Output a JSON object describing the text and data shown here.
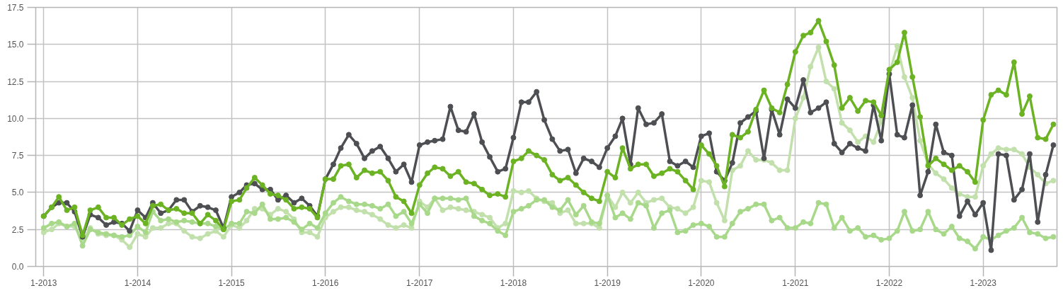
{
  "chart_data": {
    "type": "line",
    "marker": "circle",
    "line_style": "solid",
    "grid": true,
    "xlim": [
      "2012-12-01",
      "2023-10-15"
    ],
    "ylim": [
      0,
      17.5
    ],
    "xticks": [
      {
        "value": "2013-01",
        "label": "1-2013"
      },
      {
        "value": "2014-01",
        "label": "1-2014"
      },
      {
        "value": "2015-01",
        "label": "1-2015"
      },
      {
        "value": "2016-01",
        "label": "1-2016"
      },
      {
        "value": "2017-01",
        "label": "1-2017"
      },
      {
        "value": "2018-01",
        "label": "1-2018"
      },
      {
        "value": "2019-01",
        "label": "1-2019"
      },
      {
        "value": "2020-01",
        "label": "1-2020"
      },
      {
        "value": "2021-01",
        "label": "1-2021"
      },
      {
        "value": "2022-01",
        "label": "1-2022"
      },
      {
        "value": "2023-01",
        "label": "1-2023"
      }
    ],
    "yticks": [
      {
        "value": 0,
        "label": "0.0"
      },
      {
        "value": 2.5,
        "label": "2.5"
      },
      {
        "value": 5,
        "label": "5.0"
      },
      {
        "value": 7.5,
        "label": "7.5"
      },
      {
        "value": 10,
        "label": "10.0"
      },
      {
        "value": 12.5,
        "label": "12.5"
      },
      {
        "value": 15,
        "label": "15.0"
      },
      {
        "value": 17.5,
        "label": "17.5"
      }
    ],
    "x": [
      "2013-01",
      "2013-02",
      "2013-03",
      "2013-04",
      "2013-05",
      "2013-06",
      "2013-07",
      "2013-08",
      "2013-09",
      "2013-10",
      "2013-11",
      "2013-12",
      "2014-01",
      "2014-02",
      "2014-03",
      "2014-04",
      "2014-05",
      "2014-06",
      "2014-07",
      "2014-08",
      "2014-09",
      "2014-10",
      "2014-11",
      "2014-12",
      "2015-01",
      "2015-02",
      "2015-03",
      "2015-04",
      "2015-05",
      "2015-06",
      "2015-07",
      "2015-08",
      "2015-09",
      "2015-10",
      "2015-11",
      "2015-12",
      "2016-01",
      "2016-02",
      "2016-03",
      "2016-04",
      "2016-05",
      "2016-06",
      "2016-07",
      "2016-08",
      "2016-09",
      "2016-10",
      "2016-11",
      "2016-12",
      "2017-01",
      "2017-02",
      "2017-03",
      "2017-04",
      "2017-05",
      "2017-06",
      "2017-07",
      "2017-08",
      "2017-09",
      "2017-10",
      "2017-11",
      "2017-12",
      "2018-01",
      "2018-02",
      "2018-03",
      "2018-04",
      "2018-05",
      "2018-06",
      "2018-07",
      "2018-08",
      "2018-09",
      "2018-10",
      "2018-11",
      "2018-12",
      "2019-01",
      "2019-02",
      "2019-03",
      "2019-04",
      "2019-05",
      "2019-06",
      "2019-07",
      "2019-08",
      "2019-09",
      "2019-10",
      "2019-11",
      "2019-12",
      "2020-01",
      "2020-02",
      "2020-03",
      "2020-04",
      "2020-05",
      "2020-06",
      "2020-07",
      "2020-08",
      "2020-09",
      "2020-10",
      "2020-11",
      "2020-12",
      "2021-01",
      "2021-02",
      "2021-03",
      "2021-04",
      "2021-05",
      "2021-06",
      "2021-07",
      "2021-08",
      "2021-09",
      "2021-10",
      "2021-11",
      "2021-12",
      "2022-01",
      "2022-02",
      "2022-03",
      "2022-04",
      "2022-05",
      "2022-06",
      "2022-07",
      "2022-08",
      "2022-09",
      "2022-10",
      "2022-11",
      "2022-12",
      "2023-01",
      "2023-02",
      "2023-03",
      "2023-04",
      "2023-05",
      "2023-06",
      "2023-07",
      "2023-08",
      "2023-09",
      "2023-10"
    ],
    "series": [
      {
        "color": "#c2e0ab",
        "values": [
          2.3,
          2.5,
          2.9,
          2.7,
          2.7,
          1.8,
          2.6,
          2.2,
          2.1,
          2.1,
          1.8,
          1.3,
          2.2,
          2.0,
          2.6,
          2.6,
          2.9,
          2.9,
          2.4,
          2.0,
          1.9,
          2.2,
          2.4,
          2.0,
          2.8,
          2.6,
          3.1,
          3.9,
          3.9,
          3.5,
          3.9,
          3.7,
          3.2,
          2.3,
          2.3,
          2.0,
          3.3,
          3.7,
          4.0,
          4.0,
          3.8,
          3.7,
          3.5,
          3.2,
          2.8,
          2.6,
          2.8,
          2.6,
          4.4,
          4.0,
          4.6,
          3.8,
          4.0,
          3.9,
          3.8,
          3.7,
          3.5,
          3.3,
          2.6,
          2.9,
          5.1,
          5.0,
          5.1,
          4.6,
          4.4,
          4.3,
          3.6,
          3.8,
          2.9,
          2.9,
          2.9,
          2.6,
          4.8,
          4.0,
          5.0,
          4.3,
          5.0,
          4.3,
          4.5,
          4.6,
          4.0,
          3.9,
          3.6,
          4.0,
          5.8,
          5.7,
          4.3,
          3.1,
          6.5,
          6.8,
          7.8,
          7.2,
          7.2,
          7.0,
          6.5,
          6.5,
          10.0,
          11.4,
          13.5,
          14.8,
          12.5,
          12.0,
          9.7,
          9.2,
          8.4,
          8.8,
          8.4,
          9.8,
          13.0,
          14.9,
          12.8,
          11.4,
          8.5,
          6.9,
          6.3,
          5.9,
          5.3,
          4.9,
          4.7,
          4.7,
          6.8,
          7.6,
          8.0,
          7.9,
          7.9,
          7.6,
          6.7,
          6.2,
          5.6,
          5.8
        ]
      },
      {
        "color": "#a8d98a",
        "values": [
          2.6,
          2.9,
          3.0,
          2.7,
          2.9,
          1.4,
          2.5,
          2.3,
          2.2,
          2.1,
          2.0,
          2.1,
          2.7,
          2.3,
          3.7,
          3.1,
          3.2,
          3.0,
          3.1,
          3.0,
          2.9,
          2.9,
          2.7,
          2.5,
          2.9,
          2.9,
          3.7,
          3.6,
          4.2,
          3.2,
          3.2,
          3.3,
          3.0,
          2.5,
          2.9,
          2.6,
          3.6,
          4.3,
          4.7,
          4.4,
          4.2,
          4.2,
          4.1,
          3.9,
          4.2,
          3.4,
          3.7,
          2.9,
          4.2,
          3.6,
          4.6,
          4.6,
          4.6,
          4.5,
          4.6,
          3.4,
          3.1,
          2.9,
          2.4,
          2.1,
          3.7,
          3.9,
          4.1,
          4.5,
          4.5,
          4.0,
          3.8,
          4.5,
          3.5,
          4.1,
          3.0,
          2.9,
          4.8,
          3.3,
          3.6,
          3.2,
          4.3,
          4.1,
          2.6,
          3.6,
          3.8,
          2.3,
          2.4,
          2.8,
          2.9,
          2.7,
          2.0,
          2.0,
          2.9,
          3.7,
          3.9,
          4.2,
          4.2,
          3.1,
          3.3,
          2.6,
          2.6,
          3.0,
          2.9,
          4.3,
          4.2,
          2.6,
          3.3,
          2.4,
          2.6,
          2.0,
          2.1,
          1.8,
          1.9,
          2.4,
          3.7,
          2.4,
          2.5,
          3.7,
          2.5,
          2.2,
          2.7,
          1.9,
          1.7,
          1.2,
          2.0,
          1.8,
          2.1,
          2.4,
          2.6,
          3.3,
          2.3,
          2.2,
          1.9,
          2.0
        ]
      },
      {
        "color": "#4d4f53",
        "values": [
          3.4,
          4.0,
          4.3,
          4.3,
          3.7,
          2.0,
          3.5,
          3.3,
          2.8,
          3.0,
          2.9,
          2.4,
          3.8,
          3.3,
          4.3,
          3.6,
          3.8,
          4.5,
          4.5,
          3.7,
          4.1,
          4.0,
          3.8,
          2.6,
          4.7,
          5.0,
          5.5,
          5.6,
          5.2,
          5.2,
          4.5,
          4.8,
          4.3,
          4.6,
          4.1,
          3.4,
          5.9,
          6.9,
          8.0,
          8.9,
          8.3,
          7.3,
          7.8,
          8.1,
          7.3,
          6.4,
          6.9,
          5.7,
          8.2,
          8.4,
          8.5,
          8.6,
          10.8,
          9.2,
          9.1,
          10.3,
          8.4,
          7.4,
          6.4,
          6.6,
          8.7,
          11.1,
          11.1,
          11.8,
          9.9,
          8.6,
          7.8,
          7.9,
          6.3,
          7.3,
          7.1,
          6.7,
          8.0,
          8.8,
          10.0,
          6.9,
          10.7,
          9.6,
          9.7,
          10.3,
          7.1,
          6.8,
          7.1,
          6.7,
          8.8,
          9.0,
          6.4,
          5.8,
          7.0,
          9.7,
          10.1,
          10.5,
          7.3,
          10.6,
          8.9,
          11.3,
          10.7,
          12.6,
          10.4,
          10.7,
          11.1,
          8.3,
          7.7,
          8.3,
          8.0,
          7.8,
          10.9,
          8.5,
          13.0,
          8.9,
          8.7,
          10.9,
          4.8,
          6.4,
          9.6,
          7.7,
          7.5,
          3.4,
          4.4,
          3.5,
          4.3,
          1.1,
          7.6,
          7.5,
          4.5,
          5.2,
          7.6,
          3.0,
          6.2,
          8.2
        ]
      },
      {
        "color": "#6cb324",
        "values": [
          3.4,
          4.0,
          4.7,
          3.8,
          4.0,
          2.1,
          3.8,
          4.0,
          3.3,
          3.3,
          2.8,
          3.2,
          3.4,
          2.9,
          4.1,
          4.2,
          3.8,
          3.9,
          3.6,
          3.6,
          2.9,
          3.5,
          3.1,
          2.5,
          4.4,
          4.5,
          5.3,
          6.0,
          5.5,
          4.9,
          4.8,
          4.5,
          3.9,
          4.0,
          3.9,
          3.3,
          5.9,
          5.9,
          6.8,
          6.9,
          6.0,
          6.5,
          6.3,
          6.4,
          5.8,
          4.7,
          4.4,
          3.6,
          5.5,
          6.3,
          6.7,
          6.6,
          6.1,
          6.4,
          5.7,
          5.6,
          5.2,
          4.8,
          4.9,
          4.7,
          7.1,
          7.3,
          7.8,
          7.5,
          7.2,
          6.2,
          5.8,
          6.0,
          5.5,
          5.0,
          4.6,
          4.4,
          6.4,
          6.0,
          8.0,
          6.6,
          6.9,
          6.9,
          6.1,
          6.3,
          6.6,
          6.4,
          5.8,
          5.2,
          8.2,
          7.6,
          6.8,
          5.4,
          8.9,
          8.7,
          9.1,
          10.6,
          11.9,
          10.7,
          10.4,
          12.3,
          14.5,
          15.6,
          15.8,
          16.6,
          15.2,
          13.6,
          10.7,
          11.4,
          10.5,
          11.2,
          11.1,
          10.2,
          13.3,
          13.8,
          15.8,
          12.8,
          10.1,
          6.8,
          7.3,
          6.9,
          6.5,
          6.8,
          6.4,
          5.7,
          9.9,
          11.6,
          11.9,
          11.6,
          13.8,
          10.3,
          11.5,
          8.7,
          8.6,
          9.6
        ]
      }
    ]
  }
}
